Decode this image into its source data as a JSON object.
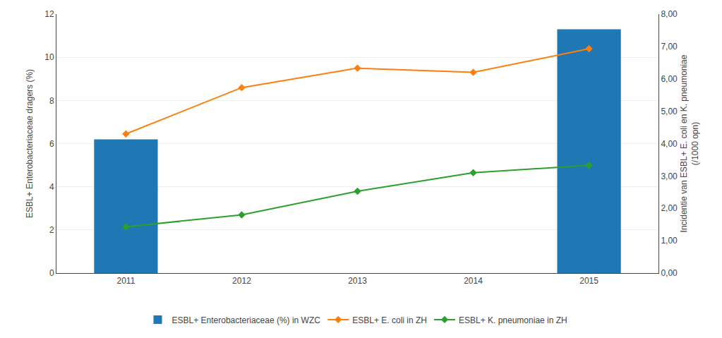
{
  "chart_data": {
    "type": "bar",
    "x": [
      2011,
      2012,
      2013,
      2014,
      2015
    ],
    "xlim": [
      2010.4,
      2015.6
    ],
    "xticks": [
      2011,
      2012,
      2013,
      2014,
      2015
    ],
    "ylabel": "ESBL+ Enterobacteriaceae dragers (%)",
    "y2label": "Incidentie van ESBL+ E. coli en K. pneumoniae\n(/1000 opn)",
    "ylim": [
      0,
      12
    ],
    "yticks": [
      0,
      2,
      4,
      6,
      8,
      10,
      12
    ],
    "y2lim": [
      0,
      8
    ],
    "y2ticks": [
      {
        "value": 0.0,
        "label": "0,00"
      },
      {
        "value": 1.0,
        "label": "1,00"
      },
      {
        "value": 2.0,
        "label": "2,00"
      },
      {
        "value": 3.0,
        "label": "3,00"
      },
      {
        "value": 4.0,
        "label": "4,00"
      },
      {
        "value": 5.0,
        "label": "5,00"
      },
      {
        "value": 6.0,
        "label": "6,00"
      },
      {
        "value": 7.0,
        "label": "7,00"
      },
      {
        "value": 8.0,
        "label": "8,00"
      }
    ],
    "grid": true,
    "legend": "bottom",
    "series": [
      {
        "name": "ESBL+ Enterobacteriaceae (%) in WZC",
        "type": "bar",
        "values": [
          6.2,
          null,
          null,
          null,
          11.3
        ]
      },
      {
        "name": "ESBL+ E. coli in ZH",
        "type": "line",
        "axis": "y2",
        "marker": "diamond",
        "values": [
          4.3,
          5.73,
          6.33,
          6.2,
          6.93
        ]
      },
      {
        "name": "ESBL+ K. pneumoniae in ZH",
        "type": "line",
        "axis": "y2",
        "marker": "diamond",
        "values": [
          1.43,
          1.8,
          2.53,
          3.1,
          3.33
        ]
      }
    ]
  }
}
